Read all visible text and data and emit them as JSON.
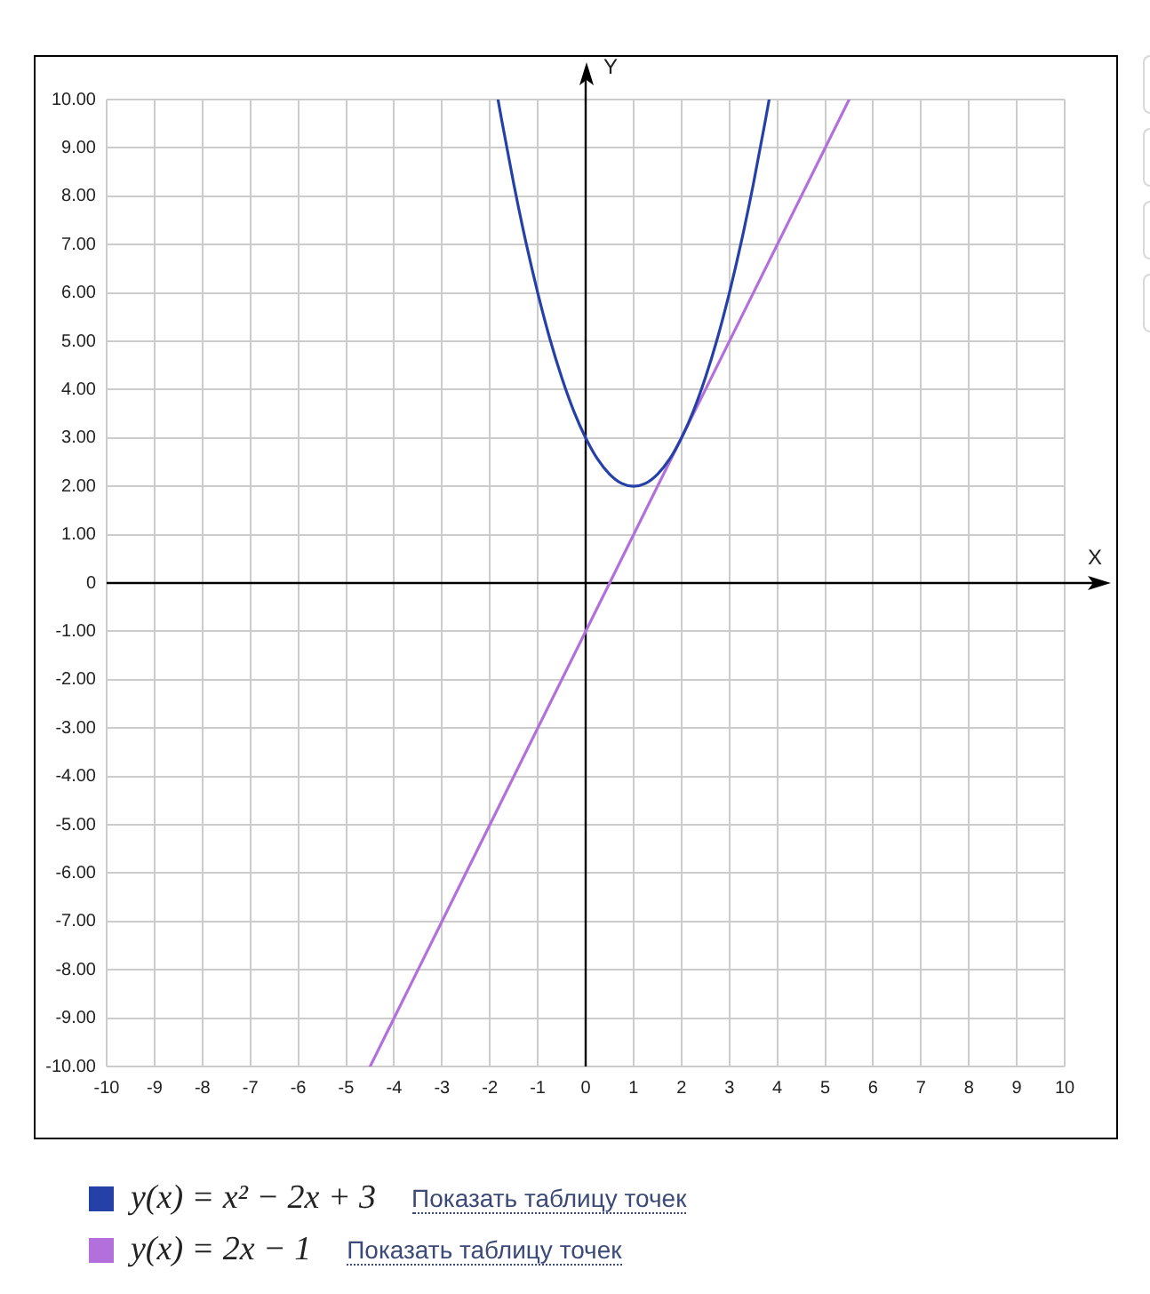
{
  "chart_data": {
    "type": "line",
    "xlabel": "X",
    "ylabel": "Y",
    "xlim": [
      -10,
      10
    ],
    "ylim": [
      -10,
      10
    ],
    "xticks": [
      -10,
      -9,
      -8,
      -7,
      -6,
      -5,
      -4,
      -3,
      -2,
      -1,
      0,
      1,
      2,
      3,
      4,
      5,
      6,
      7,
      8,
      9,
      10
    ],
    "yticks": [
      {
        "value": -10,
        "label": "-10.00"
      },
      {
        "value": -9,
        "label": "-9.00"
      },
      {
        "value": -8,
        "label": "-8.00"
      },
      {
        "value": -7,
        "label": "-7.00"
      },
      {
        "value": -6,
        "label": "-6.00"
      },
      {
        "value": -5,
        "label": "-5.00"
      },
      {
        "value": -4,
        "label": "-4.00"
      },
      {
        "value": -3,
        "label": "-3.00"
      },
      {
        "value": -2,
        "label": "-2.00"
      },
      {
        "value": -1,
        "label": "-1.00"
      },
      0,
      {
        "value": 1,
        "label": "1.00"
      },
      {
        "value": 2,
        "label": "2.00"
      },
      {
        "value": 3,
        "label": "3.00"
      },
      {
        "value": 4,
        "label": "4.00"
      },
      {
        "value": 5,
        "label": "5.00"
      },
      {
        "value": 6,
        "label": "6.00"
      },
      {
        "value": 7,
        "label": "7.00"
      },
      {
        "value": 8,
        "label": "8.00"
      },
      {
        "value": 9,
        "label": "9.00"
      },
      {
        "value": 10,
        "label": "10.00"
      }
    ],
    "grid": true,
    "legend": "bottom",
    "series": [
      {
        "name": "y(x) = x² − 2x + 3",
        "color": "#2541a8",
        "x": [
          -1.83,
          -1.75,
          -1.5,
          -1.25,
          -1,
          -0.75,
          -0.5,
          -0.25,
          0,
          0.25,
          0.5,
          0.75,
          1,
          1.25,
          1.5,
          1.75,
          2,
          2.25,
          2.5,
          2.75,
          3,
          3.25,
          3.5,
          3.75,
          3.83
        ],
        "values": [
          10,
          9.56,
          8.25,
          7.06,
          6,
          5.06,
          4.25,
          3.56,
          3,
          2.56,
          2.25,
          2.06,
          2,
          2.06,
          2.25,
          2.56,
          3,
          3.56,
          4.25,
          5.06,
          6,
          7.06,
          8.25,
          9.56,
          10
        ]
      },
      {
        "name": "y(x) = 2x − 1",
        "color": "#b370dc",
        "x": [
          -4.5,
          5.5
        ],
        "values": [
          -10,
          10
        ]
      }
    ],
    "annotations": [
      "Показать таблицу точек",
      "Показать таблицу точек"
    ]
  }
}
